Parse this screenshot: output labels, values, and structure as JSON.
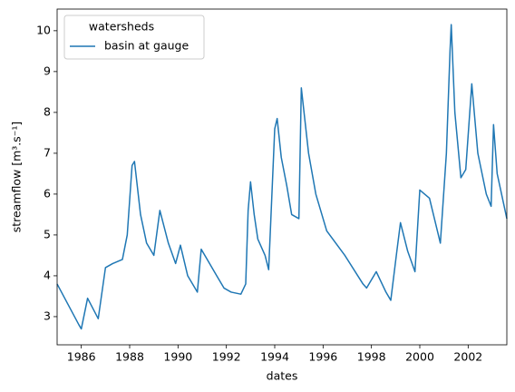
{
  "chart_data": {
    "type": "line",
    "xlabel": "dates",
    "ylabel": "streamflow [m³.s⁻¹]",
    "legend_title": "watersheds",
    "legend": "upper left",
    "x": [
      1985.0,
      1985.9,
      1986.0,
      1986.26,
      1986.7,
      1987.0,
      1987.3,
      1987.7,
      1987.9,
      1988.1,
      1988.2,
      1988.45,
      1988.7,
      1989.0,
      1989.25,
      1989.6,
      1989.9,
      1990.1,
      1990.4,
      1990.8,
      1990.96,
      1991.6,
      1991.9,
      1992.2,
      1992.6,
      1992.8,
      1992.9,
      1993.0,
      1993.15,
      1993.3,
      1993.6,
      1993.75,
      1994.0,
      1994.1,
      1994.27,
      1994.5,
      1994.7,
      1995.0,
      1995.1,
      1995.4,
      1995.7,
      1996.15,
      1996.9,
      1997.65,
      1997.8,
      1998.2,
      1998.6,
      1998.8,
      1999.05,
      1999.2,
      1999.5,
      1999.8,
      2000.0,
      2000.2,
      2000.4,
      2000.85,
      2001.1,
      2001.25,
      2001.3,
      2001.45,
      2001.7,
      2001.9,
      2002.15,
      2002.4,
      2002.75,
      2002.95,
      2003.05,
      2003.2,
      2003.6
    ],
    "series": [
      {
        "name": "basin at gauge",
        "color": "#1f77b4",
        "values": [
          3.8,
          2.8,
          2.7,
          3.45,
          2.95,
          4.2,
          4.3,
          4.4,
          5.0,
          6.7,
          6.8,
          5.5,
          4.8,
          4.5,
          5.6,
          4.8,
          4.3,
          4.75,
          4.0,
          3.6,
          4.65,
          4.0,
          3.7,
          3.6,
          3.55,
          3.8,
          5.6,
          6.3,
          5.5,
          4.9,
          4.5,
          4.15,
          7.6,
          7.85,
          6.9,
          6.2,
          5.5,
          5.4,
          8.6,
          7.0,
          6.0,
          5.1,
          4.5,
          3.8,
          3.7,
          4.1,
          3.6,
          3.4,
          4.6,
          5.3,
          4.6,
          4.1,
          6.1,
          6.0,
          5.9,
          4.8,
          7.0,
          9.5,
          10.15,
          8.0,
          6.4,
          6.6,
          8.7,
          7.0,
          6.0,
          5.7,
          7.7,
          6.5,
          5.4
        ]
      }
    ],
    "xlim": [
      1985.0,
      2003.6
    ],
    "xticks": [
      1986,
      1988,
      1990,
      1992,
      1994,
      1996,
      1998,
      2000,
      2002
    ],
    "ylim": [
      2.31,
      10.53
    ],
    "yticks": [
      3,
      4,
      5,
      6,
      7,
      8,
      9,
      10
    ]
  }
}
